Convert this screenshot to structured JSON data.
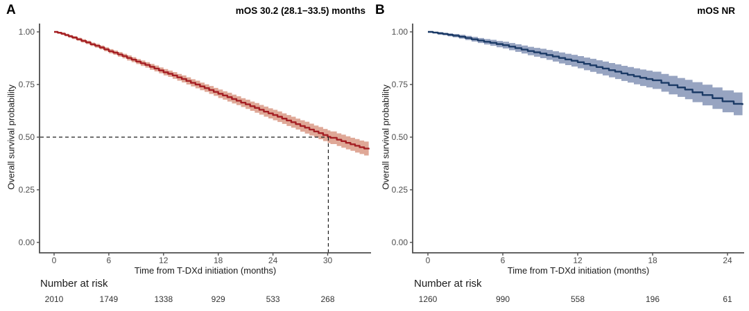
{
  "figure": {
    "background": "#ffffff",
    "axis_color": "#4d4d4d",
    "text_color": "#4d4d4d"
  },
  "chart_data": [
    {
      "type": "line",
      "subtype": "kaplan_meier_survival",
      "panel_label": "A",
      "title": "mOS 30.2 (28.1−33.5) months",
      "xlabel": "Time from T-DXd initiation (months)",
      "ylabel": "Overall survival probability",
      "xticks": [
        0,
        6,
        12,
        18,
        24,
        30
      ],
      "xtick_labels": [
        "0",
        "6",
        "12",
        "18",
        "24",
        "30"
      ],
      "yticks": [
        1.0,
        0.75,
        0.5,
        0.25,
        0.0
      ],
      "ytick_labels": [
        "1.00",
        "0.75",
        "0.50",
        "0.25",
        "0.00"
      ],
      "xlim": [
        -1.6,
        34.9
      ],
      "ylim": [
        0,
        1
      ],
      "grid": false,
      "legend": "none",
      "line_color": "#a41e23",
      "band_color": "#dfa897",
      "median_annotation": {
        "x": 30.07,
        "y": 0.5
      },
      "risk_label": "Number at risk",
      "risk_times": [
        0,
        6,
        12,
        18,
        24,
        30
      ],
      "risk_counts": [
        2010,
        1749,
        1338,
        929,
        533,
        268
      ],
      "curve": [
        [
          0,
          1.0,
          0.995,
          1.0
        ],
        [
          0.4,
          0.996,
          0.991,
          1.0
        ],
        [
          0.8,
          0.991,
          0.985,
          0.997
        ],
        [
          1.2,
          0.985,
          0.979,
          0.991
        ],
        [
          1.6,
          0.979,
          0.973,
          0.985
        ],
        [
          2,
          0.973,
          0.966,
          0.98
        ],
        [
          2.5,
          0.965,
          0.958,
          0.972
        ],
        [
          3,
          0.957,
          0.95,
          0.965
        ],
        [
          3.5,
          0.95,
          0.942,
          0.958
        ],
        [
          4,
          0.941,
          0.933,
          0.949
        ],
        [
          4.5,
          0.934,
          0.925,
          0.943
        ],
        [
          5,
          0.926,
          0.917,
          0.935
        ],
        [
          5.5,
          0.917,
          0.908,
          0.927
        ],
        [
          6,
          0.908,
          0.898,
          0.918
        ],
        [
          6.5,
          0.901,
          0.891,
          0.911
        ],
        [
          7,
          0.893,
          0.882,
          0.904
        ],
        [
          7.5,
          0.885,
          0.874,
          0.896
        ],
        [
          8,
          0.876,
          0.864,
          0.888
        ],
        [
          8.5,
          0.868,
          0.856,
          0.88
        ],
        [
          9,
          0.859,
          0.847,
          0.871
        ],
        [
          9.5,
          0.851,
          0.838,
          0.864
        ],
        [
          10,
          0.843,
          0.83,
          0.856
        ],
        [
          10.5,
          0.834,
          0.82,
          0.848
        ],
        [
          11,
          0.826,
          0.812,
          0.84
        ],
        [
          11.5,
          0.817,
          0.803,
          0.831
        ],
        [
          12,
          0.808,
          0.793,
          0.823
        ],
        [
          12.5,
          0.801,
          0.786,
          0.816
        ],
        [
          13,
          0.793,
          0.777,
          0.809
        ],
        [
          13.5,
          0.784,
          0.768,
          0.8
        ],
        [
          14,
          0.776,
          0.76,
          0.793
        ],
        [
          14.5,
          0.767,
          0.75,
          0.784
        ],
        [
          15,
          0.758,
          0.741,
          0.775
        ],
        [
          15.5,
          0.75,
          0.732,
          0.768
        ],
        [
          16,
          0.741,
          0.723,
          0.759
        ],
        [
          16.5,
          0.733,
          0.715,
          0.751
        ],
        [
          17,
          0.724,
          0.705,
          0.743
        ],
        [
          17.5,
          0.715,
          0.696,
          0.734
        ],
        [
          18,
          0.706,
          0.686,
          0.726
        ],
        [
          18.5,
          0.698,
          0.678,
          0.718
        ],
        [
          19,
          0.69,
          0.669,
          0.711
        ],
        [
          19.5,
          0.681,
          0.66,
          0.702
        ],
        [
          20,
          0.673,
          0.652,
          0.694
        ],
        [
          20.5,
          0.664,
          0.643,
          0.685
        ],
        [
          21,
          0.656,
          0.634,
          0.678
        ],
        [
          21.5,
          0.647,
          0.625,
          0.669
        ],
        [
          22,
          0.639,
          0.616,
          0.662
        ],
        [
          22.5,
          0.63,
          0.607,
          0.653
        ],
        [
          23,
          0.621,
          0.597,
          0.645
        ],
        [
          23.5,
          0.613,
          0.589,
          0.637
        ],
        [
          24,
          0.605,
          0.58,
          0.63
        ],
        [
          24.5,
          0.597,
          0.572,
          0.622
        ],
        [
          25,
          0.588,
          0.563,
          0.613
        ],
        [
          25.5,
          0.579,
          0.553,
          0.605
        ],
        [
          26,
          0.571,
          0.545,
          0.597
        ],
        [
          26.5,
          0.562,
          0.536,
          0.588
        ],
        [
          27,
          0.553,
          0.526,
          0.58
        ],
        [
          27.5,
          0.545,
          0.517,
          0.573
        ],
        [
          28,
          0.536,
          0.508,
          0.564
        ],
        [
          28.5,
          0.527,
          0.499,
          0.555
        ],
        [
          29,
          0.519,
          0.49,
          0.548
        ],
        [
          29.5,
          0.51,
          0.481,
          0.539
        ],
        [
          30,
          0.502,
          0.472,
          0.532
        ],
        [
          30.3,
          0.497,
          0.467,
          0.527
        ],
        [
          31,
          0.488,
          0.458,
          0.518
        ],
        [
          31.5,
          0.481,
          0.45,
          0.512
        ],
        [
          32,
          0.473,
          0.442,
          0.504
        ],
        [
          32.5,
          0.466,
          0.435,
          0.497
        ],
        [
          33,
          0.459,
          0.427,
          0.491
        ],
        [
          33.5,
          0.452,
          0.42,
          0.484
        ],
        [
          34,
          0.446,
          0.413,
          0.479
        ],
        [
          34.5,
          0.442,
          0.409,
          0.475
        ]
      ]
    },
    {
      "type": "line",
      "subtype": "kaplan_meier_survival",
      "panel_label": "B",
      "title": "mOS NR",
      "xlabel": "Time from T-DXd initiation (months)",
      "ylabel": "Overall survival probability",
      "xticks": [
        0,
        6,
        12,
        18,
        24
      ],
      "xtick_labels": [
        "0",
        "6",
        "12",
        "18",
        "24"
      ],
      "yticks": [
        1.0,
        0.75,
        0.5,
        0.25,
        0.0
      ],
      "ytick_labels": [
        "1.00",
        "0.75",
        "0.50",
        "0.25",
        "0.00"
      ],
      "xlim": [
        -1.2,
        25.4
      ],
      "ylim": [
        0,
        1
      ],
      "grid": false,
      "legend": "none",
      "line_color": "#1b3a66",
      "band_color": "#97a4c1",
      "median_annotation": null,
      "risk_label": "Number at risk",
      "risk_times": [
        0,
        6,
        12,
        18,
        24
      ],
      "risk_counts": [
        1260,
        990,
        558,
        196,
        61
      ],
      "curve": [
        [
          0,
          1.0,
          0.996,
          1.0
        ],
        [
          0.4,
          0.997,
          0.992,
          1.0
        ],
        [
          0.8,
          0.993,
          0.987,
          0.999
        ],
        [
          1.2,
          0.99,
          0.984,
          0.996
        ],
        [
          1.6,
          0.986,
          0.979,
          0.993
        ],
        [
          2,
          0.982,
          0.974,
          0.99
        ],
        [
          2.5,
          0.977,
          0.968,
          0.986
        ],
        [
          3,
          0.971,
          0.961,
          0.981
        ],
        [
          3.5,
          0.965,
          0.954,
          0.976
        ],
        [
          4,
          0.959,
          0.947,
          0.971
        ],
        [
          4.5,
          0.953,
          0.94,
          0.966
        ],
        [
          5,
          0.948,
          0.934,
          0.962
        ],
        [
          5.5,
          0.942,
          0.927,
          0.957
        ],
        [
          6,
          0.937,
          0.921,
          0.953
        ],
        [
          6.5,
          0.93,
          0.913,
          0.947
        ],
        [
          7,
          0.923,
          0.905,
          0.941
        ],
        [
          7.5,
          0.916,
          0.897,
          0.935
        ],
        [
          8,
          0.909,
          0.889,
          0.929
        ],
        [
          8.5,
          0.903,
          0.882,
          0.924
        ],
        [
          9,
          0.897,
          0.875,
          0.92
        ],
        [
          9.5,
          0.89,
          0.867,
          0.914
        ],
        [
          10,
          0.883,
          0.859,
          0.908
        ],
        [
          10.5,
          0.876,
          0.85,
          0.902
        ],
        [
          11,
          0.869,
          0.842,
          0.896
        ],
        [
          11.5,
          0.863,
          0.835,
          0.891
        ],
        [
          12,
          0.856,
          0.827,
          0.885
        ],
        [
          12.5,
          0.848,
          0.818,
          0.878
        ],
        [
          13,
          0.841,
          0.81,
          0.872
        ],
        [
          13.5,
          0.833,
          0.801,
          0.865
        ],
        [
          14,
          0.826,
          0.793,
          0.859
        ],
        [
          14.5,
          0.818,
          0.784,
          0.852
        ],
        [
          15,
          0.811,
          0.776,
          0.846
        ],
        [
          15.5,
          0.803,
          0.767,
          0.839
        ],
        [
          16,
          0.796,
          0.759,
          0.833
        ],
        [
          16.5,
          0.789,
          0.751,
          0.827
        ],
        [
          17,
          0.782,
          0.743,
          0.821
        ],
        [
          17.5,
          0.776,
          0.736,
          0.816
        ],
        [
          18,
          0.77,
          0.729,
          0.811
        ],
        [
          18.7,
          0.758,
          0.716,
          0.8
        ],
        [
          19.3,
          0.747,
          0.703,
          0.791
        ],
        [
          20,
          0.736,
          0.691,
          0.781
        ],
        [
          20.6,
          0.726,
          0.68,
          0.772
        ],
        [
          21.2,
          0.713,
          0.666,
          0.761
        ],
        [
          22,
          0.7,
          0.651,
          0.749
        ],
        [
          22.8,
          0.685,
          0.634,
          0.736
        ],
        [
          23.6,
          0.67,
          0.618,
          0.722
        ],
        [
          24.5,
          0.658,
          0.604,
          0.712
        ],
        [
          25.2,
          0.653,
          0.597,
          0.709
        ]
      ]
    }
  ]
}
